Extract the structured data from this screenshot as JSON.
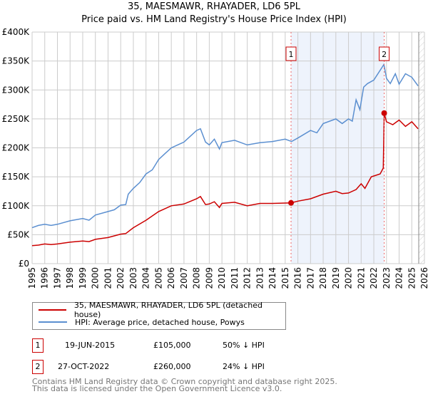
{
  "chart_data": {
    "type": "line",
    "title": "35, MAESMAWR, RHAYADER, LD6 5PL",
    "subtitle": "Price paid vs. HM Land Registry's House Price Index (HPI)",
    "xlim": [
      1995,
      2026
    ],
    "ylim": [
      0,
      400000
    ],
    "grid": true,
    "yticks": [
      {
        "v": 0,
        "label": "£0"
      },
      {
        "v": 50000,
        "label": "£50K"
      },
      {
        "v": 100000,
        "label": "£100K"
      },
      {
        "v": 150000,
        "label": "£150K"
      },
      {
        "v": 200000,
        "label": "£200K"
      },
      {
        "v": 250000,
        "label": "£250K"
      },
      {
        "v": 300000,
        "label": "£300K"
      },
      {
        "v": 350000,
        "label": "£350K"
      },
      {
        "v": 400000,
        "label": "£400K"
      }
    ],
    "xticks": [
      "1995",
      "1996",
      "1997",
      "1998",
      "1999",
      "2000",
      "2001",
      "2002",
      "2003",
      "2004",
      "2005",
      "2006",
      "2007",
      "2008",
      "2009",
      "2010",
      "2011",
      "2012",
      "2013",
      "2014",
      "2015",
      "2016",
      "2017",
      "2018",
      "2019",
      "2020",
      "2021",
      "2022",
      "2023",
      "2024",
      "2025",
      "2026"
    ],
    "shaded_range": [
      2015.46,
      2022.82
    ],
    "hatched_from": 2025.55,
    "series": [
      {
        "name": "35, MAESMAWR, RHAYADER, LD6 5PL (detached house)",
        "color": "#cc0000",
        "x": [
          1995,
          1995.5,
          1996,
          1996.5,
          1997,
          1998,
          1999,
          1999.5,
          2000,
          2001,
          2002,
          2002.4,
          2003,
          2004,
          2005,
          2006,
          2007,
          2008,
          2008.3,
          2008.7,
          2009,
          2009.4,
          2009.8,
          2010,
          2011,
          2012,
          2013,
          2014,
          2015.46,
          2016,
          2017,
          2018,
          2019,
          2019.5,
          2020,
          2020.6,
          2021,
          2021.3,
          2021.8,
          2022.5,
          2022.75,
          2022.82,
          2023,
          2023.5,
          2024,
          2024.5,
          2025,
          2025.5
        ],
        "y": [
          31000,
          32000,
          34000,
          33000,
          34000,
          37000,
          39000,
          38000,
          42000,
          45000,
          51000,
          52000,
          62000,
          75000,
          90000,
          100000,
          103000,
          112000,
          116000,
          102000,
          103000,
          107000,
          97000,
          104000,
          106000,
          100000,
          104000,
          104000,
          105000,
          108000,
          112000,
          120000,
          125000,
          121000,
          122000,
          128000,
          138000,
          130000,
          150000,
          155000,
          165000,
          260000,
          245000,
          240000,
          248000,
          237000,
          245000,
          233000
        ]
      },
      {
        "name": "HPI: Average price, detached house, Powys",
        "color": "#5b8fd0",
        "x": [
          1995,
          1995.5,
          1996,
          1996.5,
          1997,
          1998,
          1999,
          1999.5,
          2000,
          2001,
          2001.5,
          2002,
          2002.4,
          2002.6,
          2003,
          2003.5,
          2004,
          2004.5,
          2005,
          2005.5,
          2006,
          2006.5,
          2007,
          2007.5,
          2008,
          2008.3,
          2008.7,
          2009,
          2009.4,
          2009.8,
          2010,
          2011,
          2012,
          2013,
          2014,
          2015,
          2015.5,
          2016,
          2017,
          2017.5,
          2018,
          2019,
          2019.5,
          2020,
          2020.3,
          2020.6,
          2020.9,
          2021.2,
          2021.5,
          2022,
          2022.8,
          2023,
          2023.3,
          2023.7,
          2024,
          2024.5,
          2025,
          2025.5
        ],
        "y": [
          62000,
          66000,
          68000,
          66000,
          68000,
          74000,
          78000,
          75000,
          84000,
          90000,
          93000,
          101000,
          102000,
          120000,
          130000,
          140000,
          155000,
          162000,
          180000,
          190000,
          200000,
          205000,
          210000,
          220000,
          230000,
          233000,
          210000,
          205000,
          215000,
          198000,
          209000,
          213000,
          205000,
          209000,
          211000,
          215000,
          211000,
          217000,
          230000,
          226000,
          242000,
          250000,
          242000,
          250000,
          246000,
          283000,
          266000,
          305000,
          311000,
          317000,
          344000,
          320000,
          311000,
          328000,
          310000,
          328000,
          322000,
          307000
        ]
      }
    ],
    "annotations": [
      {
        "id": "1",
        "x": 2015.46,
        "y": 105000
      },
      {
        "id": "2",
        "x": 2022.82,
        "y": 260000
      }
    ]
  },
  "legend": {
    "items": [
      "35, MAESMAWR, RHAYADER, LD6 5PL (detached house)",
      "HPI: Average price, detached house, Powys"
    ]
  },
  "transactions": [
    {
      "id": "1",
      "date": "19-JUN-2015",
      "price": "£105,000",
      "hpi": "50% ↓ HPI"
    },
    {
      "id": "2",
      "date": "27-OCT-2022",
      "price": "£260,000",
      "hpi": "24% ↓ HPI"
    }
  ],
  "footer": [
    "Contains HM Land Registry data © Crown copyright and database right 2025.",
    "This data is licensed under the Open Government Licence v3.0."
  ]
}
